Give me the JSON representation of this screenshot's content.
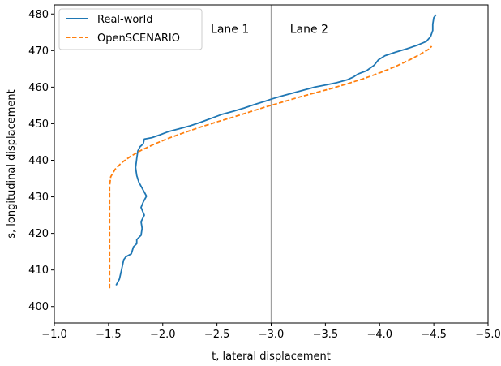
{
  "chart_data": {
    "type": "line",
    "title": "",
    "xlabel": "t, lateral displacement",
    "ylabel": "s, longitudinal displacement",
    "xlim": [
      -1.0,
      -5.0
    ],
    "ylim": [
      395.5,
      482.5
    ],
    "x_ticks": [
      -1.0,
      -1.5,
      -2.0,
      -2.5,
      -3.0,
      -3.5,
      -4.0,
      -4.5,
      -5.0
    ],
    "x_tick_labels": [
      "−1.0",
      "−1.5",
      "−2.0",
      "−2.5",
      "−3.0",
      "−3.5",
      "−4.0",
      "−4.5",
      "−5.0"
    ],
    "y_ticks": [
      400,
      410,
      420,
      430,
      440,
      450,
      460,
      470,
      480
    ],
    "y_tick_labels": [
      "400",
      "410",
      "420",
      "430",
      "440",
      "450",
      "460",
      "470",
      "480"
    ],
    "grid": false,
    "legend_position": "top-left",
    "vertical_line": {
      "x": -3.0,
      "color": "#a0a0a0"
    },
    "annotations": [
      {
        "text": "Lane 1",
        "x": -2.62,
        "y": 476
      },
      {
        "text": "Lane 2",
        "x": -3.35,
        "y": 476
      }
    ],
    "series": [
      {
        "name": "Real-world",
        "color": "#1f77b4",
        "dash": "solid",
        "points": [
          [
            -1.57,
            405.8
          ],
          [
            -1.6,
            407.5
          ],
          [
            -1.62,
            410.0
          ],
          [
            -1.64,
            412.8
          ],
          [
            -1.66,
            413.6
          ],
          [
            -1.71,
            414.4
          ],
          [
            -1.73,
            416.3
          ],
          [
            -1.76,
            417.2
          ],
          [
            -1.76,
            418.3
          ],
          [
            -1.8,
            419.5
          ],
          [
            -1.81,
            421.4
          ],
          [
            -1.8,
            423.2
          ],
          [
            -1.83,
            425.0
          ],
          [
            -1.8,
            427.1
          ],
          [
            -1.82,
            428.6
          ],
          [
            -1.85,
            430.2
          ],
          [
            -1.82,
            431.8
          ],
          [
            -1.78,
            434.0
          ],
          [
            -1.76,
            435.8
          ],
          [
            -1.75,
            438.0
          ],
          [
            -1.76,
            440.5
          ],
          [
            -1.77,
            442.5
          ],
          [
            -1.79,
            443.7
          ],
          [
            -1.82,
            444.5
          ],
          [
            -1.83,
            445.8
          ],
          [
            -1.9,
            446.2
          ],
          [
            -1.97,
            446.9
          ],
          [
            -2.05,
            447.8
          ],
          [
            -2.15,
            448.6
          ],
          [
            -2.25,
            449.4
          ],
          [
            -2.35,
            450.4
          ],
          [
            -2.45,
            451.5
          ],
          [
            -2.55,
            452.6
          ],
          [
            -2.65,
            453.4
          ],
          [
            -2.75,
            454.3
          ],
          [
            -2.85,
            455.3
          ],
          [
            -2.95,
            456.2
          ],
          [
            -3.0,
            456.7
          ],
          [
            -3.1,
            457.6
          ],
          [
            -3.2,
            458.4
          ],
          [
            -3.3,
            459.2
          ],
          [
            -3.4,
            460.0
          ],
          [
            -3.5,
            460.6
          ],
          [
            -3.6,
            461.2
          ],
          [
            -3.7,
            462.0
          ],
          [
            -3.76,
            462.8
          ],
          [
            -3.8,
            463.6
          ],
          [
            -3.88,
            464.5
          ],
          [
            -3.95,
            466.0
          ],
          [
            -3.99,
            467.5
          ],
          [
            -4.05,
            468.6
          ],
          [
            -4.15,
            469.6
          ],
          [
            -4.25,
            470.5
          ],
          [
            -4.35,
            471.5
          ],
          [
            -4.43,
            472.5
          ],
          [
            -4.47,
            473.8
          ],
          [
            -4.49,
            475.5
          ],
          [
            -4.49,
            477.2
          ],
          [
            -4.5,
            479.0
          ],
          [
            -4.52,
            479.8
          ]
        ]
      },
      {
        "name": "OpenSCENARIO",
        "color": "#ff7f0e",
        "dash": "dashed",
        "points": [
          [
            -1.51,
            405.0
          ],
          [
            -1.51,
            415.0
          ],
          [
            -1.51,
            425.0
          ],
          [
            -1.51,
            433.0
          ],
          [
            -1.52,
            435.5
          ],
          [
            -1.56,
            437.5
          ],
          [
            -1.62,
            439.3
          ],
          [
            -1.7,
            441.0
          ],
          [
            -1.8,
            442.7
          ],
          [
            -1.92,
            444.4
          ],
          [
            -2.05,
            446.0
          ],
          [
            -2.2,
            447.6
          ],
          [
            -2.35,
            449.1
          ],
          [
            -2.5,
            450.5
          ],
          [
            -2.65,
            451.8
          ],
          [
            -2.8,
            453.2
          ],
          [
            -2.95,
            454.6
          ],
          [
            -3.1,
            455.9
          ],
          [
            -3.25,
            457.2
          ],
          [
            -3.4,
            458.4
          ],
          [
            -3.55,
            459.6
          ],
          [
            -3.7,
            460.9
          ],
          [
            -3.85,
            462.3
          ],
          [
            -4.0,
            463.9
          ],
          [
            -4.15,
            465.7
          ],
          [
            -4.28,
            467.5
          ],
          [
            -4.38,
            469.1
          ],
          [
            -4.46,
            470.5
          ],
          [
            -4.48,
            471.2
          ]
        ]
      }
    ]
  }
}
